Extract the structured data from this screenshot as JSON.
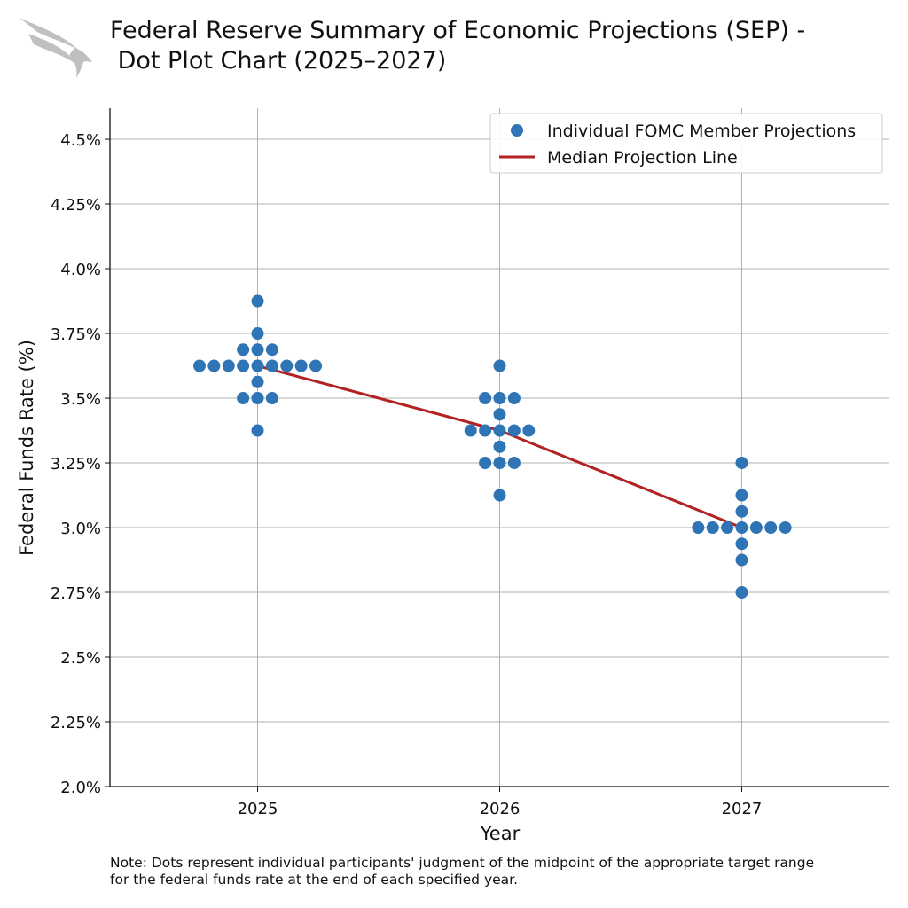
{
  "title_line1": "Federal Reserve Summary of Economic Projections (SEP) -",
  "title_line2": " Dot Plot Chart (2025–2027)",
  "logo": {
    "icon": "eagle-logo",
    "color": "#c0c0c0"
  },
  "note_line1": "Note: Dots represent individual participants' judgment of the midpoint of the appropriate target range",
  "note_line2": "for the federal funds rate at the end of each specified year.",
  "chart_data": {
    "type": "scatter",
    "xlabel": "Year",
    "ylabel": "Federal Funds Rate (%)",
    "x_ticks": [
      "2025",
      "2026",
      "2027"
    ],
    "y_ticks": [
      "2.0%",
      "2.25%",
      "2.5%",
      "2.75%",
      "3.0%",
      "3.25%",
      "3.5%",
      "3.75%",
      "4.0%",
      "4.25%",
      "4.5%"
    ],
    "xlim": [
      2024.39,
      2027.61
    ],
    "ylim": [
      2.0,
      4.62
    ],
    "grid": true,
    "legend_placement": "top-right",
    "series": [
      {
        "name": "Individual FOMC Member Projections",
        "color": "#2f74b5",
        "points": {
          "2025": [
            3.875,
            3.75,
            3.6875,
            3.6875,
            3.6875,
            3.625,
            3.625,
            3.625,
            3.625,
            3.625,
            3.625,
            3.625,
            3.625,
            3.625,
            3.5625,
            3.5,
            3.5,
            3.5,
            3.375
          ],
          "2026": [
            3.625,
            3.5,
            3.5,
            3.5,
            3.4375,
            3.375,
            3.375,
            3.375,
            3.375,
            3.375,
            3.3125,
            3.25,
            3.25,
            3.25,
            3.125
          ],
          "2027": [
            3.25,
            3.125,
            3.0625,
            3.0,
            3.0,
            3.0,
            3.0,
            3.0,
            3.0,
            3.0,
            2.9375,
            2.875,
            2.75
          ]
        }
      },
      {
        "name": "Median Projection Line",
        "color": "#b22222",
        "x": [
          2025,
          2026,
          2027
        ],
        "y": [
          3.625,
          3.375,
          3.0
        ]
      }
    ]
  }
}
